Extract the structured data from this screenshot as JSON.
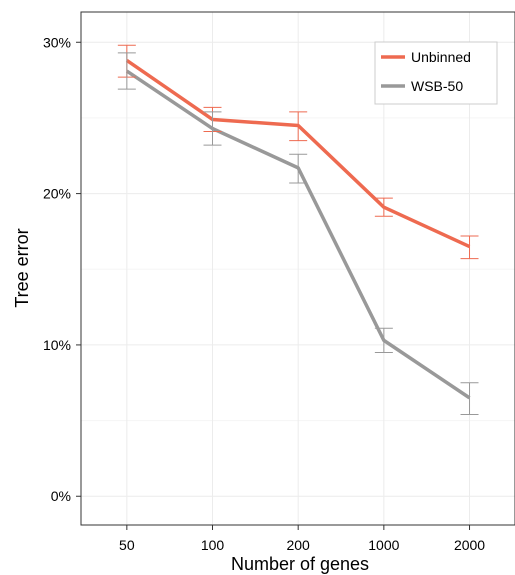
{
  "chart_data": {
    "type": "line",
    "xlabel": "Number of genes",
    "ylabel": "Tree error",
    "categories": [
      "50",
      "100",
      "200",
      "1000",
      "2000"
    ],
    "yticks": [
      {
        "value": 0,
        "label": "0%"
      },
      {
        "value": 10,
        "label": "10%"
      },
      {
        "value": 20,
        "label": "20%"
      },
      {
        "value": 30,
        "label": "30%"
      }
    ],
    "ylim": [
      -1.9,
      32.0
    ],
    "grid": true,
    "legend_position": "top-right",
    "series": [
      {
        "name": "Unbinned",
        "color": "#EE6A50",
        "values": [
          28.8,
          24.9,
          24.5,
          19.1,
          16.5
        ],
        "err_low": [
          27.7,
          24.1,
          23.5,
          18.5,
          15.7
        ],
        "err_high": [
          29.8,
          25.7,
          25.4,
          19.7,
          17.2
        ]
      },
      {
        "name": "WSB-50",
        "color": "#999999",
        "values": [
          28.1,
          24.3,
          21.7,
          10.3,
          6.5
        ],
        "err_low": [
          26.9,
          23.2,
          20.7,
          9.5,
          5.4
        ],
        "err_high": [
          29.3,
          25.4,
          22.6,
          11.1,
          7.5
        ]
      }
    ]
  }
}
